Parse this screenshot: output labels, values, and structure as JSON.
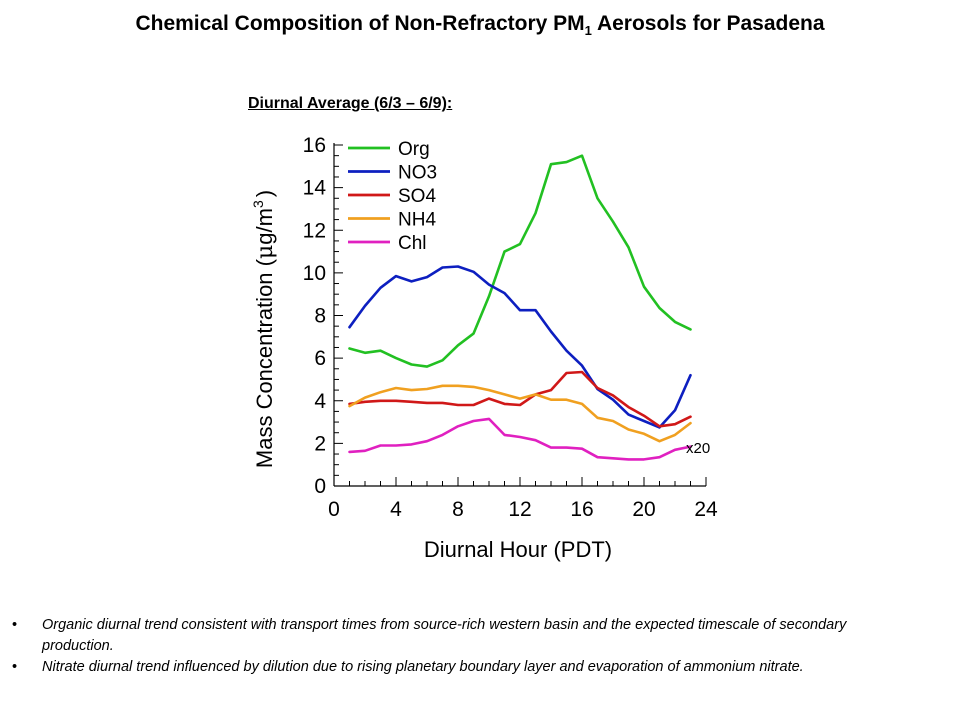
{
  "page": {
    "title_main": "Chemical Composition of Non-Refractory PM",
    "title_sub": "1",
    "title_end": " Aerosols for Pasadena",
    "subtitle": "Diurnal Average (6/3 – 6/9):"
  },
  "chart_data": {
    "type": "line",
    "xlabel": "Diurnal Hour (PDT)",
    "ylabel_main": "Mass Concentration (",
    "ylabel_mu": "μ",
    "ylabel_unit": "g/m",
    "ylabel_sup": "3",
    "ylabel_close": ")",
    "xlim": [
      0,
      24
    ],
    "ylim": [
      0,
      16
    ],
    "x_ticks": [
      0,
      4,
      8,
      12,
      16,
      20,
      24
    ],
    "y_ticks": [
      0,
      2,
      4,
      6,
      8,
      10,
      12,
      14,
      16
    ],
    "x_tick_labels": [
      "0",
      "4",
      "8",
      "12",
      "16",
      "20",
      "24"
    ],
    "y_tick_labels": [
      "0",
      "2",
      "4",
      "6",
      "8",
      "10",
      "12",
      "14",
      "16"
    ],
    "legend_position": "top-left",
    "grid": false,
    "annotation": "x20",
    "x": [
      1,
      2,
      3,
      4,
      5,
      6,
      7,
      8,
      9,
      10,
      11,
      12,
      13,
      14,
      15,
      16,
      17,
      18,
      19,
      20,
      21,
      22,
      23
    ],
    "series": [
      {
        "name": "Org",
        "color": "#22c022",
        "values": [
          6.45,
          6.25,
          6.35,
          6.0,
          5.7,
          5.6,
          5.9,
          6.6,
          7.15,
          8.9,
          11.0,
          11.35,
          12.8,
          15.1,
          15.2,
          15.5,
          13.5,
          12.4,
          11.2,
          9.35,
          8.35,
          7.7,
          7.35
        ]
      },
      {
        "name": "NO3",
        "color": "#0d1fc0",
        "values": [
          7.45,
          8.45,
          9.3,
          9.85,
          9.6,
          9.8,
          10.25,
          10.3,
          10.05,
          9.45,
          9.05,
          8.25,
          8.25,
          7.25,
          6.35,
          5.65,
          4.55,
          4.05,
          3.35,
          3.05,
          2.75,
          3.55,
          5.2
        ]
      },
      {
        "name": "SO4",
        "color": "#d01818",
        "values": [
          3.85,
          3.95,
          4.0,
          4.0,
          3.95,
          3.9,
          3.9,
          3.8,
          3.8,
          4.1,
          3.85,
          3.8,
          4.3,
          4.5,
          5.3,
          5.35,
          4.6,
          4.25,
          3.7,
          3.3,
          2.8,
          2.9,
          3.25
        ]
      },
      {
        "name": "NH4",
        "color": "#f0a020",
        "values": [
          3.75,
          4.15,
          4.4,
          4.6,
          4.5,
          4.55,
          4.7,
          4.7,
          4.65,
          4.5,
          4.3,
          4.1,
          4.3,
          4.05,
          4.05,
          3.85,
          3.2,
          3.05,
          2.65,
          2.45,
          2.1,
          2.4,
          2.95
        ]
      },
      {
        "name": "Chl",
        "color": "#e020c0",
        "values": [
          1.6,
          1.65,
          1.9,
          1.9,
          1.95,
          2.1,
          2.4,
          2.8,
          3.05,
          3.15,
          2.4,
          2.3,
          2.15,
          1.8,
          1.8,
          1.75,
          1.35,
          1.3,
          1.25,
          1.25,
          1.35,
          1.7,
          1.85
        ]
      }
    ]
  },
  "bullets": [
    {
      "marker": "•",
      "text": "Organic diurnal trend consistent with transport times from source-rich western basin and the expected timescale of secondary production."
    },
    {
      "marker": "•",
      "text": "Nitrate diurnal trend influenced by dilution due to rising planetary boundary layer and evaporation of ammonium nitrate."
    }
  ]
}
